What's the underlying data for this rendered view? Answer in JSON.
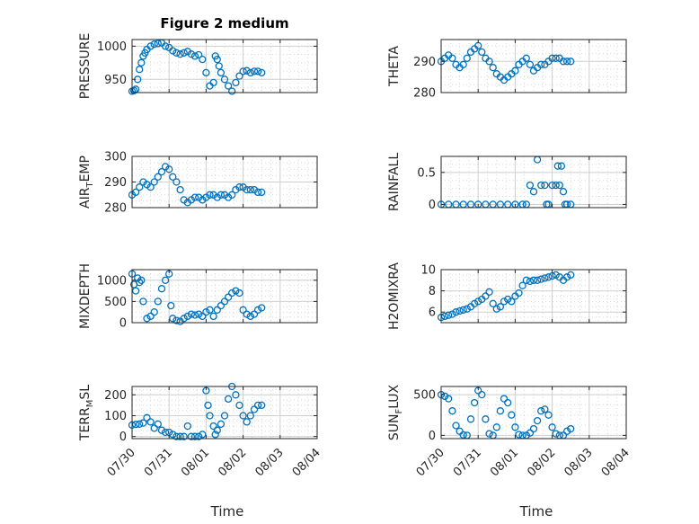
{
  "figure": {
    "title": "Figure 2 medium",
    "xlabel": "Time",
    "x_tick_labels": [
      "07/30",
      "07/31",
      "08/01",
      "08/02",
      "08/03",
      "08/04"
    ]
  },
  "style": {
    "marker_color": "#0072BD",
    "axis_color": "#262626",
    "grid_color": "#d9d9d9"
  },
  "chart_data": [
    {
      "type": "scatter",
      "ylabel": "PRESSURE",
      "ylabel_subscript": "",
      "ylabel_tail": "",
      "title": "Figure 2 medium",
      "ylim": [
        930,
        1010
      ],
      "yticks": [
        950,
        1000
      ],
      "xlim": [
        0,
        5
      ],
      "x": [
        0,
        0.05,
        0.1,
        0.15,
        0.2,
        0.25,
        0.3,
        0.35,
        0.4,
        0.5,
        0.6,
        0.7,
        0.8,
        0.9,
        1.0,
        1.1,
        1.2,
        1.3,
        1.4,
        1.5,
        1.6,
        1.7,
        1.8,
        1.9,
        2.0,
        2.1,
        2.2,
        2.25,
        2.3,
        2.35,
        2.4,
        2.5,
        2.6,
        2.7,
        2.8,
        2.9,
        3.0,
        3.1,
        3.2,
        3.3,
        3.4,
        3.5
      ],
      "y": [
        932,
        933,
        935,
        950,
        965,
        975,
        985,
        990,
        995,
        1000,
        1003,
        1004,
        1005,
        1000,
        998,
        993,
        990,
        988,
        990,
        992,
        988,
        985,
        987,
        980,
        960,
        940,
        945,
        985,
        980,
        970,
        960,
        950,
        940,
        932,
        945,
        955,
        962,
        963,
        960,
        962,
        962,
        960
      ]
    },
    {
      "type": "scatter",
      "ylabel": "THETA",
      "ylabel_subscript": "",
      "ylabel_tail": "",
      "ylim": [
        280,
        297
      ],
      "yticks": [
        280,
        290
      ],
      "xlim": [
        0,
        5
      ],
      "x": [
        0,
        0.1,
        0.2,
        0.3,
        0.4,
        0.5,
        0.6,
        0.7,
        0.8,
        0.9,
        1.0,
        1.1,
        1.2,
        1.3,
        1.4,
        1.5,
        1.6,
        1.7,
        1.8,
        1.9,
        2.0,
        2.1,
        2.2,
        2.3,
        2.4,
        2.5,
        2.6,
        2.7,
        2.8,
        2.9,
        3.0,
        3.1,
        3.2,
        3.3,
        3.4,
        3.5
      ],
      "y": [
        290,
        291,
        292,
        291,
        289,
        288,
        289,
        291,
        293,
        294,
        295,
        293,
        291,
        290,
        288,
        286,
        285,
        284,
        285,
        286,
        287,
        289,
        290,
        291,
        289,
        287,
        288,
        289,
        289,
        290,
        291,
        291,
        291,
        290,
        290,
        290
      ]
    },
    {
      "type": "scatter",
      "ylabel": "AIR",
      "ylabel_subscript": "T",
      "ylabel_tail": "EMP",
      "ylim": [
        280,
        300
      ],
      "yticks": [
        280,
        290,
        300
      ],
      "xlim": [
        0,
        5
      ],
      "x": [
        0,
        0.1,
        0.2,
        0.3,
        0.4,
        0.5,
        0.6,
        0.7,
        0.8,
        0.9,
        1.0,
        1.1,
        1.2,
        1.3,
        1.4,
        1.5,
        1.6,
        1.7,
        1.8,
        1.9,
        2.0,
        2.1,
        2.2,
        2.3,
        2.4,
        2.5,
        2.6,
        2.7,
        2.8,
        2.9,
        3.0,
        3.1,
        3.2,
        3.3,
        3.4,
        3.5
      ],
      "y": [
        285,
        286,
        288,
        290,
        289,
        288,
        290,
        292,
        294,
        296,
        295,
        292,
        290,
        287,
        283,
        282,
        283,
        284,
        284,
        283,
        284,
        285,
        285,
        284,
        285,
        285,
        284,
        285,
        287,
        288,
        288,
        287,
        287,
        287,
        286,
        286
      ]
    },
    {
      "type": "scatter",
      "ylabel": "RAINFALL",
      "ylabel_subscript": "",
      "ylabel_tail": "",
      "ylim": [
        -0.05,
        0.75
      ],
      "yticks": [
        0,
        0.5
      ],
      "xlim": [
        0,
        5
      ],
      "x": [
        0,
        0.2,
        0.4,
        0.6,
        0.8,
        1.0,
        1.2,
        1.4,
        1.6,
        1.8,
        2.0,
        2.2,
        2.3,
        2.4,
        2.5,
        2.6,
        2.7,
        2.8,
        2.85,
        2.9,
        3.0,
        3.1,
        3.15,
        3.2,
        3.25,
        3.3,
        3.35,
        3.4,
        3.5
      ],
      "y": [
        0,
        0,
        0,
        0,
        0,
        0,
        0,
        0,
        0,
        0,
        0,
        0,
        0,
        0.3,
        0.2,
        0.7,
        0.3,
        0.3,
        0,
        0,
        0.3,
        0.3,
        0.6,
        0.3,
        0.6,
        0.2,
        0,
        0,
        0
      ]
    },
    {
      "type": "scatter",
      "ylabel": "MIXDEPTH",
      "ylabel_subscript": "",
      "ylabel_tail": "",
      "ylim": [
        0,
        1250
      ],
      "yticks": [
        0,
        500,
        1000
      ],
      "xlim": [
        0,
        5
      ],
      "x": [
        0,
        0.05,
        0.1,
        0.15,
        0.2,
        0.25,
        0.3,
        0.4,
        0.5,
        0.6,
        0.7,
        0.8,
        0.9,
        1.0,
        1.05,
        1.1,
        1.2,
        1.3,
        1.4,
        1.5,
        1.6,
        1.7,
        1.8,
        1.9,
        2.0,
        2.1,
        2.2,
        2.3,
        2.4,
        2.5,
        2.6,
        2.7,
        2.8,
        2.9,
        3.0,
        3.1,
        3.2,
        3.3,
        3.4,
        3.5
      ],
      "y": [
        1150,
        900,
        750,
        1050,
        950,
        1000,
        500,
        100,
        150,
        250,
        500,
        800,
        1000,
        1150,
        400,
        100,
        50,
        30,
        100,
        150,
        200,
        180,
        200,
        150,
        250,
        300,
        150,
        300,
        400,
        500,
        600,
        700,
        750,
        700,
        300,
        200,
        150,
        200,
        300,
        350
      ]
    },
    {
      "type": "scatter",
      "ylabel": "H2OMIXRA",
      "ylabel_subscript": "",
      "ylabel_tail": "",
      "ylim": [
        5,
        10
      ],
      "yticks": [
        6,
        8,
        10
      ],
      "xlim": [
        0,
        5
      ],
      "x": [
        0,
        0.1,
        0.2,
        0.3,
        0.4,
        0.5,
        0.6,
        0.7,
        0.8,
        0.9,
        1.0,
        1.1,
        1.2,
        1.3,
        1.4,
        1.5,
        1.6,
        1.7,
        1.8,
        1.9,
        2.0,
        2.1,
        2.2,
        2.3,
        2.4,
        2.5,
        2.6,
        2.7,
        2.8,
        2.9,
        3.0,
        3.1,
        3.2,
        3.3,
        3.4,
        3.5
      ],
      "y": [
        5.5,
        5.6,
        5.7,
        5.8,
        6.0,
        6.1,
        6.2,
        6.3,
        6.5,
        6.8,
        7.0,
        7.2,
        7.5,
        7.9,
        6.8,
        6.3,
        6.5,
        7.0,
        7.2,
        7.0,
        7.5,
        7.8,
        8.5,
        9.0,
        8.9,
        9.0,
        9.0,
        9.1,
        9.2,
        9.3,
        9.4,
        9.5,
        9.3,
        9.0,
        9.3,
        9.5
      ]
    },
    {
      "type": "scatter",
      "ylabel": "TERR",
      "ylabel_subscript": "M",
      "ylabel_tail": "SL",
      "ylim": [
        -10,
        240
      ],
      "yticks": [
        0,
        100,
        200
      ],
      "xlim": [
        0,
        5
      ],
      "x": [
        0,
        0.1,
        0.2,
        0.3,
        0.4,
        0.5,
        0.6,
        0.7,
        0.8,
        0.9,
        1.0,
        1.1,
        1.2,
        1.3,
        1.4,
        1.5,
        1.6,
        1.7,
        1.8,
        1.9,
        2.0,
        2.05,
        2.1,
        2.2,
        2.25,
        2.3,
        2.4,
        2.5,
        2.6,
        2.7,
        2.8,
        2.9,
        3.0,
        3.1,
        3.2,
        3.3,
        3.4,
        3.5
      ],
      "y": [
        55,
        58,
        60,
        65,
        90,
        70,
        40,
        60,
        30,
        20,
        20,
        10,
        0,
        0,
        0,
        50,
        0,
        0,
        0,
        10,
        220,
        150,
        100,
        50,
        10,
        30,
        60,
        100,
        180,
        240,
        200,
        150,
        100,
        70,
        100,
        130,
        150,
        150
      ]
    },
    {
      "type": "scatter",
      "ylabel": "SUN",
      "ylabel_subscript": "F",
      "ylabel_tail": "LUX",
      "ylim": [
        -40,
        600
      ],
      "yticks": [
        0,
        500
      ],
      "xlim": [
        0,
        5
      ],
      "x": [
        0,
        0.1,
        0.2,
        0.3,
        0.4,
        0.5,
        0.6,
        0.7,
        0.8,
        0.9,
        1.0,
        1.1,
        1.2,
        1.3,
        1.4,
        1.5,
        1.6,
        1.7,
        1.8,
        1.9,
        2.0,
        2.1,
        2.2,
        2.3,
        2.4,
        2.5,
        2.6,
        2.7,
        2.8,
        2.9,
        3.0,
        3.1,
        3.2,
        3.3,
        3.4,
        3.5
      ],
      "y": [
        500,
        480,
        450,
        300,
        120,
        50,
        5,
        0,
        200,
        400,
        550,
        500,
        200,
        20,
        0,
        100,
        300,
        450,
        400,
        250,
        100,
        10,
        0,
        0,
        30,
        80,
        180,
        300,
        320,
        250,
        100,
        20,
        0,
        0,
        50,
        80
      ]
    }
  ]
}
